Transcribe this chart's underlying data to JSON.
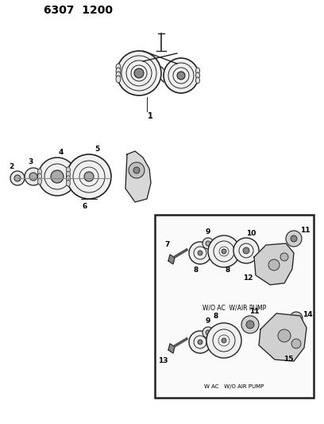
{
  "title": "6307  1200",
  "bg_color": "#ffffff",
  "border_color": "#000000",
  "text_color": "#000000",
  "diagram_label1": "W/O AC  W/AIR PUMP",
  "diagram_label2": "W AC   W/O AIR PUMP",
  "fig_width": 4.08,
  "fig_height": 5.33,
  "dpi": 100,
  "line_color": "#222222",
  "fill_gray": "#bbbbbb",
  "fill_light": "#dddddd"
}
